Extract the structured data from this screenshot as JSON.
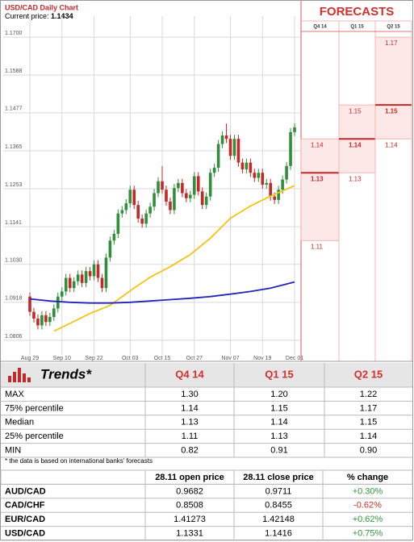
{
  "chart_data": {
    "type": "candlestick",
    "title": "USD/CAD Daily Chart",
    "subtitle": "Current price:",
    "current_price": 1.1434,
    "categories": [
      "Aug 29",
      null,
      null,
      null,
      null,
      null,
      null,
      null,
      "Sep 10",
      null,
      null,
      null,
      null,
      null,
      null,
      null,
      "Sep 22",
      null,
      null,
      null,
      null,
      null,
      null,
      null,
      null,
      "Oct 03",
      null,
      null,
      null,
      null,
      null,
      null,
      null,
      "Oct 15",
      null,
      null,
      null,
      null,
      null,
      null,
      null,
      "Oct 27",
      null,
      null,
      null,
      null,
      null,
      null,
      null,
      null,
      "Nov 07",
      null,
      null,
      null,
      null,
      null,
      null,
      null,
      "Nov 19",
      null,
      null,
      null,
      null,
      null,
      null,
      null,
      "Dec 01"
    ],
    "open": [
      1.0935,
      1.089,
      1.087,
      1.085,
      1.088,
      1.086,
      1.0875,
      1.09,
      1.0935,
      1.095,
      1.099,
      1.096,
      1.098,
      1.1,
      1.0975,
      1.101,
      1.0995,
      1.103,
      1.099,
      1.096,
      1.105,
      1.11,
      1.112,
      1.118,
      1.119,
      1.121,
      1.125,
      1.1205,
      1.1165,
      1.115,
      1.118,
      1.12,
      1.124,
      1.1275,
      1.125,
      1.1215,
      1.119,
      1.1255,
      1.127,
      1.124,
      1.1225,
      1.1235,
      1.129,
      1.1245,
      1.1205,
      1.123,
      1.13,
      1.1315,
      1.1385,
      1.141,
      1.14,
      1.135,
      1.14,
      1.133,
      1.131,
      1.133,
      1.13,
      1.1285,
      1.13,
      1.1265,
      1.127,
      1.123,
      1.122,
      1.125,
      1.128,
      1.132,
      1.142
    ],
    "high": [
      1.0947,
      1.0902,
      1.0882,
      1.0892,
      1.0892,
      1.0887,
      1.0912,
      1.0947,
      1.0962,
      1.1002,
      1.1002,
      1.0992,
      1.1012,
      1.1012,
      1.1022,
      1.1022,
      1.1042,
      1.1042,
      1.1002,
      1.1062,
      1.1112,
      1.1132,
      1.1192,
      1.1202,
      1.1222,
      1.1262,
      1.1262,
      1.1217,
      1.1177,
      1.1192,
      1.1212,
      1.1252,
      1.1287,
      1.132,
      1.1262,
      1.1227,
      1.1267,
      1.1282,
      1.1282,
      1.1252,
      1.1247,
      1.1302,
      1.1302,
      1.1257,
      1.1242,
      1.1312,
      1.1327,
      1.1397,
      1.1422,
      1.1445,
      1.1412,
      1.1412,
      1.1412,
      1.1342,
      1.1342,
      1.1342,
      1.1312,
      1.1312,
      1.1312,
      1.1282,
      1.1282,
      1.1242,
      1.1262,
      1.1292,
      1.1332,
      1.1432,
      1.1446
    ],
    "low": [
      1.0878,
      1.0858,
      1.0838,
      1.0838,
      1.0848,
      1.0848,
      1.0863,
      1.0888,
      1.0923,
      1.0938,
      1.0948,
      1.0948,
      1.0968,
      1.0963,
      1.0963,
      1.0983,
      1.0983,
      1.0978,
      1.0948,
      1.0948,
      1.1038,
      1.1088,
      1.1108,
      1.1168,
      1.1178,
      1.1198,
      1.1193,
      1.1153,
      1.1138,
      1.1138,
      1.1168,
      1.1188,
      1.1228,
      1.1238,
      1.1203,
      1.1178,
      1.1178,
      1.1243,
      1.1228,
      1.1213,
      1.1213,
      1.1223,
      1.1233,
      1.1193,
      1.1193,
      1.1218,
      1.1288,
      1.1303,
      1.1373,
      1.1388,
      1.1338,
      1.1338,
      1.1318,
      1.1298,
      1.1298,
      1.1288,
      1.1273,
      1.1273,
      1.1253,
      1.1253,
      1.1218,
      1.1208,
      1.1208,
      1.1238,
      1.1268,
      1.1308,
      1.1408
    ],
    "close": [
      1.089,
      1.087,
      1.085,
      1.088,
      1.086,
      1.0875,
      1.09,
      1.0935,
      1.095,
      1.099,
      1.096,
      1.098,
      1.1,
      1.0975,
      1.101,
      1.0995,
      1.103,
      1.099,
      1.096,
      1.105,
      1.11,
      1.112,
      1.118,
      1.119,
      1.121,
      1.125,
      1.1205,
      1.1165,
      1.115,
      1.118,
      1.12,
      1.124,
      1.1275,
      1.125,
      1.1215,
      1.119,
      1.1255,
      1.127,
      1.124,
      1.1225,
      1.1235,
      1.129,
      1.1245,
      1.1205,
      1.123,
      1.13,
      1.1315,
      1.1385,
      1.141,
      1.14,
      1.135,
      1.14,
      1.133,
      1.131,
      1.133,
      1.13,
      1.1285,
      1.13,
      1.1265,
      1.127,
      1.123,
      1.122,
      1.125,
      1.128,
      1.132,
      1.142,
      1.1434
    ],
    "up_color": "#2f8f3a",
    "down_color": "#c62828",
    "lines": [
      {
        "color": "#f2c418",
        "x": [
          6,
          10,
          15,
          20,
          25,
          30,
          35,
          40,
          45,
          50,
          55,
          60,
          66
        ],
        "values": [
          1.0833,
          1.0856,
          1.0885,
          1.0909,
          1.0952,
          1.0992,
          1.1023,
          1.1059,
          1.1107,
          1.1166,
          1.1202,
          1.1231,
          1.1262
        ]
      },
      {
        "color": "#2323b8",
        "x": [
          0,
          5,
          10,
          15,
          20,
          25,
          30,
          35,
          40,
          45,
          50,
          55,
          60,
          65,
          66
        ],
        "values": [
          1.0928,
          1.0922,
          1.0918,
          1.0916,
          1.0916,
          1.0918,
          1.0922,
          1.0926,
          1.093,
          1.0935,
          1.0942,
          1.095,
          1.096,
          1.0975,
          1.0978
        ]
      }
    ],
    "ylim": [
      1.0763,
      1.1762
    ],
    "yticks": [
      {
        "value": 1.17,
        "label": "1.1700"
      },
      1.1588,
      1.1477,
      1.1365,
      1.1253,
      1.1141,
      {
        "value": 1.103,
        "label": "1.1030"
      },
      1.0918,
      1.0806
    ],
    "grid": true
  },
  "forecasts": {
    "title": "FORECASTS"
  },
  "trends": {
    "title": "Trends*",
    "columns": [
      "Q4 14",
      "Q1 15",
      "Q2 15"
    ],
    "rows": [
      [
        "MAX",
        "1.30",
        "1.20",
        "1.22"
      ],
      [
        "75% percentile",
        "1.14",
        "1.15",
        "1.17"
      ],
      [
        "Median",
        "1.13",
        "1.14",
        "1.15"
      ],
      [
        "25% percentile",
        "1.11",
        "1.13",
        "1.14"
      ],
      [
        "MIN",
        "0.82",
        "0.91",
        "0.90"
      ]
    ]
  },
  "note": "* the data is based on international banks' forecasts",
  "prices": {
    "columns": [
      "28.11 open price",
      "28.11 close price",
      "% change"
    ],
    "rows": [
      [
        "AUD/CAD",
        "0.9682",
        "0.9711",
        "+0.30%"
      ],
      [
        "CAD/CHF",
        "0.8508",
        "0.8455",
        "-0.62%"
      ],
      [
        "EUR/CAD",
        "1.41273",
        "1.42148",
        "+0.62%"
      ],
      [
        "USD/CAD",
        "1.1331",
        "1.1416",
        "+0.75%"
      ]
    ]
  }
}
